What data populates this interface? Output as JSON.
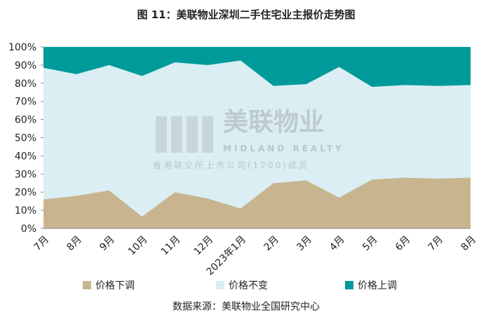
{
  "chart_data": {
    "type": "stacked_area",
    "title": "图 11：美联物业深圳二手住宅业主报价走势图",
    "categories": [
      "7月",
      "8月",
      "9月",
      "10月",
      "11月",
      "12月",
      "2023年1月",
      "2月",
      "3月",
      "4月",
      "5月",
      "6月",
      "7月",
      "8月"
    ],
    "series": [
      {
        "name": "价格下调",
        "color": "#c8b590",
        "values": [
          16,
          18,
          21,
          6.5,
          20,
          16.5,
          11,
          25,
          26.5,
          17,
          27,
          28,
          27.5,
          28
        ]
      },
      {
        "name": "价格不变",
        "color": "#daeef4",
        "values": [
          72.5,
          67,
          69,
          77.5,
          71.5,
          73.5,
          81.5,
          53.5,
          53,
          72,
          51,
          51,
          51,
          51
        ]
      },
      {
        "name": "价格上调",
        "color": "#009a9a",
        "values": [
          11.5,
          15,
          10,
          16,
          8.5,
          10,
          7.5,
          21.5,
          20.5,
          11,
          22,
          21,
          21.5,
          21
        ]
      }
    ],
    "ylim": [
      0,
      100
    ],
    "yticks": [
      {
        "value": 0,
        "label": "0%"
      },
      {
        "value": 10,
        "label": "10%"
      },
      {
        "value": 20,
        "label": "20%"
      },
      {
        "value": 30,
        "label": "30%"
      },
      {
        "value": 40,
        "label": "40%"
      },
      {
        "value": 50,
        "label": "50%"
      },
      {
        "value": 60,
        "label": "60%"
      },
      {
        "value": 70,
        "label": "70%"
      },
      {
        "value": 80,
        "label": "80%"
      },
      {
        "value": 90,
        "label": "90%"
      },
      {
        "value": 100,
        "label": "100%"
      }
    ],
    "watermark": [
      "美联物业",
      "MIDLAND REALTY",
      "香港联交所上市公司(1200)成员"
    ],
    "source": "数据来源：美联物业全国研究中心"
  }
}
